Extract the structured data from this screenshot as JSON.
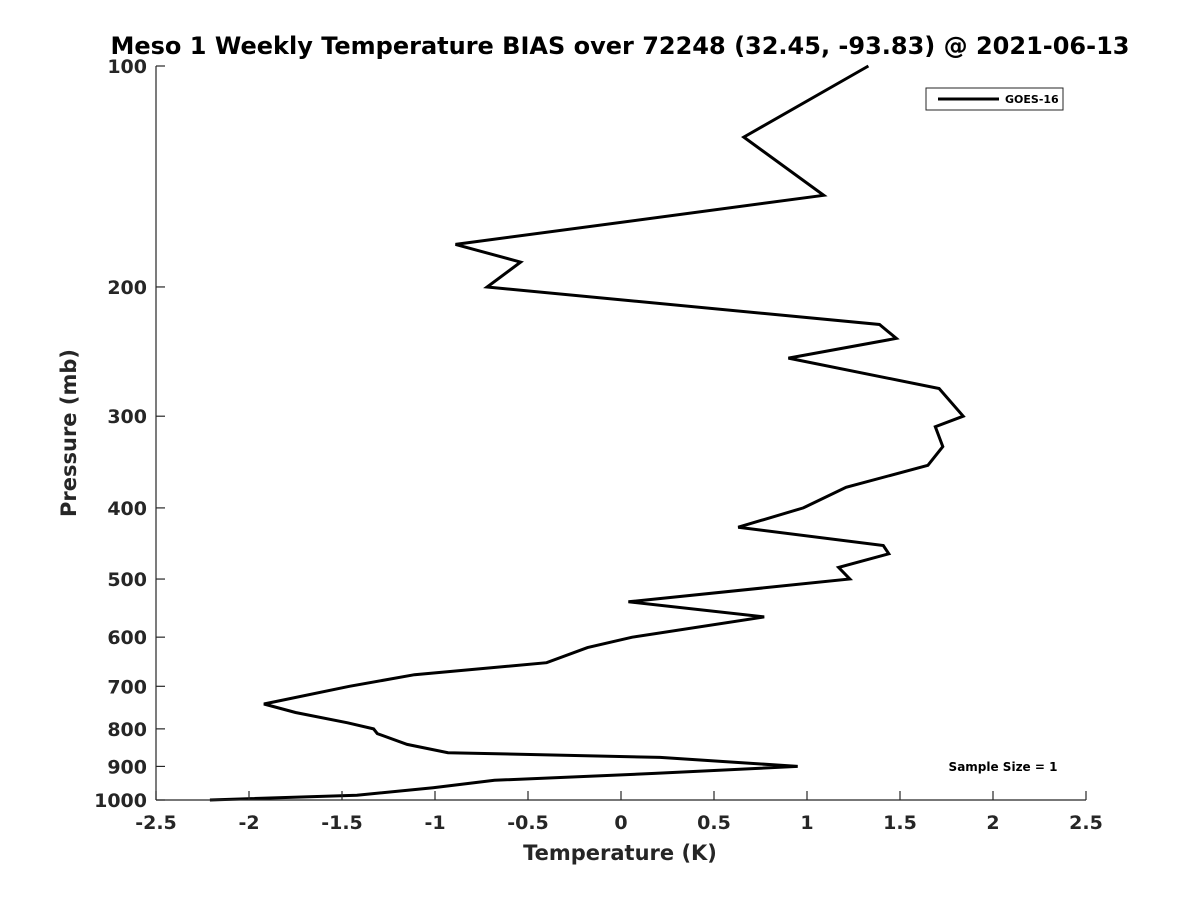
{
  "chart_data": {
    "type": "line",
    "title": "Meso 1 Weekly Temperature BIAS over 72248 (32.45, -93.83) @ 2021-06-13",
    "xlabel": "Temperature (K)",
    "ylabel": "Pressure (mb)",
    "xlim": [
      -2.5,
      2.5
    ],
    "ylim": [
      1000,
      100
    ],
    "y_scale": "log",
    "x_ticks": [
      -2.5,
      -2,
      -1.5,
      -1,
      -0.5,
      0,
      0.5,
      1,
      1.5,
      2,
      2.5
    ],
    "x_tick_labels": [
      "-2.5",
      "-2",
      "-1.5",
      "-1",
      "-0.5",
      "0",
      "0.5",
      "1",
      "1.5",
      "2",
      "2.5"
    ],
    "y_ticks": [
      100,
      200,
      300,
      400,
      500,
      600,
      700,
      800,
      900,
      1000
    ],
    "y_tick_labels": [
      "100",
      "200",
      "300",
      "400",
      "500",
      "600",
      "700",
      "800",
      "900",
      "1000"
    ],
    "grid": false,
    "legend_position": "top-right",
    "series": [
      {
        "name": "GOES-16",
        "color": "#000000",
        "points": [
          {
            "p": 100,
            "t": 1.33
          },
          {
            "p": 125,
            "t": 0.66
          },
          {
            "p": 150,
            "t": 1.09
          },
          {
            "p": 175,
            "t": -0.89
          },
          {
            "p": 185,
            "t": -0.54
          },
          {
            "p": 200,
            "t": -0.72
          },
          {
            "p": 225,
            "t": 1.39
          },
          {
            "p": 235,
            "t": 1.48
          },
          {
            "p": 250,
            "t": 0.9
          },
          {
            "p": 275,
            "t": 1.71
          },
          {
            "p": 300,
            "t": 1.84
          },
          {
            "p": 310,
            "t": 1.69
          },
          {
            "p": 330,
            "t": 1.73
          },
          {
            "p": 350,
            "t": 1.65
          },
          {
            "p": 375,
            "t": 1.21
          },
          {
            "p": 400,
            "t": 0.98
          },
          {
            "p": 425,
            "t": 0.63
          },
          {
            "p": 450,
            "t": 1.41
          },
          {
            "p": 462,
            "t": 1.44
          },
          {
            "p": 482,
            "t": 1.17
          },
          {
            "p": 500,
            "t": 1.23
          },
          {
            "p": 537,
            "t": 0.04
          },
          {
            "p": 563,
            "t": 0.77
          },
          {
            "p": 600,
            "t": 0.06
          },
          {
            "p": 620,
            "t": -0.18
          },
          {
            "p": 650,
            "t": -0.4
          },
          {
            "p": 675,
            "t": -1.11
          },
          {
            "p": 700,
            "t": -1.46
          },
          {
            "p": 740,
            "t": -1.92
          },
          {
            "p": 760,
            "t": -1.75
          },
          {
            "p": 785,
            "t": -1.47
          },
          {
            "p": 800,
            "t": -1.33
          },
          {
            "p": 812,
            "t": -1.31
          },
          {
            "p": 840,
            "t": -1.15
          },
          {
            "p": 862,
            "t": -0.93
          },
          {
            "p": 875,
            "t": 0.21
          },
          {
            "p": 900,
            "t": 0.95
          },
          {
            "p": 920,
            "t": 0.18
          },
          {
            "p": 940,
            "t": -0.68
          },
          {
            "p": 962,
            "t": -1.01
          },
          {
            "p": 985,
            "t": -1.42
          },
          {
            "p": 1000,
            "t": -2.21
          }
        ]
      }
    ],
    "annotations": [
      {
        "text": "Sample Size = 1",
        "location": "bottom-right"
      }
    ]
  }
}
